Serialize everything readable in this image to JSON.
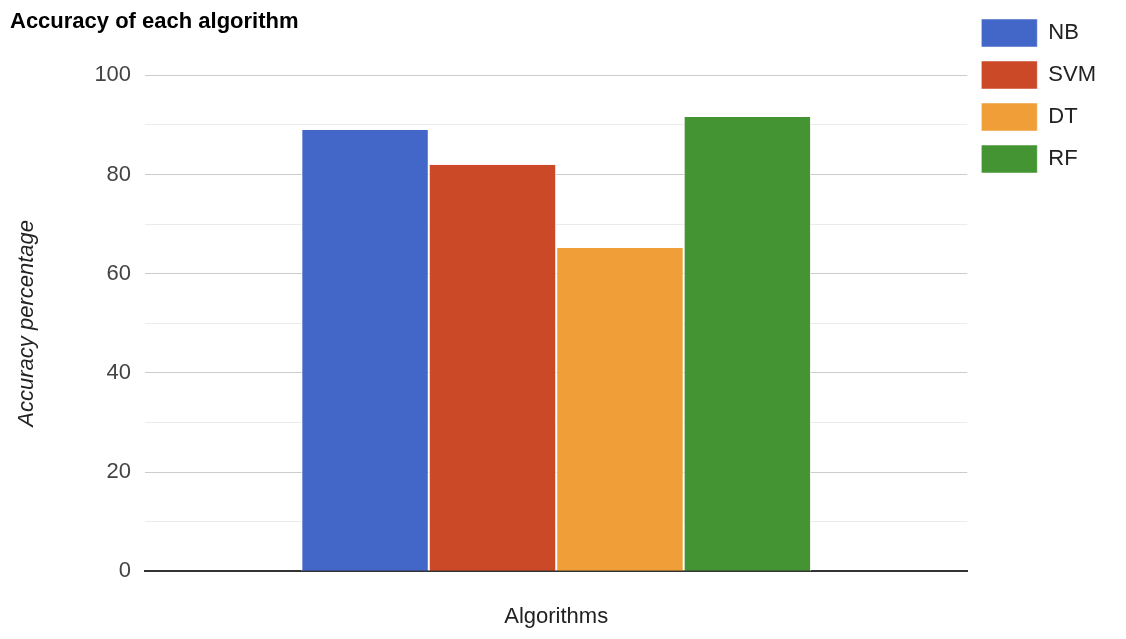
{
  "chart_data": {
    "type": "bar",
    "title": "Accuracy of each algorithm",
    "xlabel": "Algorithms",
    "ylabel": "Accuracy percentage",
    "categories": [
      null
    ],
    "series": [
      {
        "name": "NB",
        "color": "#4267c8",
        "values": [
          89
        ]
      },
      {
        "name": "SVM",
        "color": "#cc4928",
        "values": [
          82
        ]
      },
      {
        "name": "DT",
        "color": "#f09f38",
        "values": [
          65.2
        ]
      },
      {
        "name": "RF",
        "color": "#459433",
        "values": [
          91.6
        ]
      }
    ],
    "ylim": [
      0,
      100
    ],
    "yticks": [
      0,
      {
        "value": 10,
        "label": null
      },
      20,
      {
        "value": 30,
        "label": null
      },
      40,
      {
        "value": 50,
        "label": null
      },
      60,
      {
        "value": 70,
        "label": null
      },
      80,
      {
        "value": 90,
        "label": null
      },
      100
    ],
    "grid": "y",
    "legend": "top right"
  }
}
